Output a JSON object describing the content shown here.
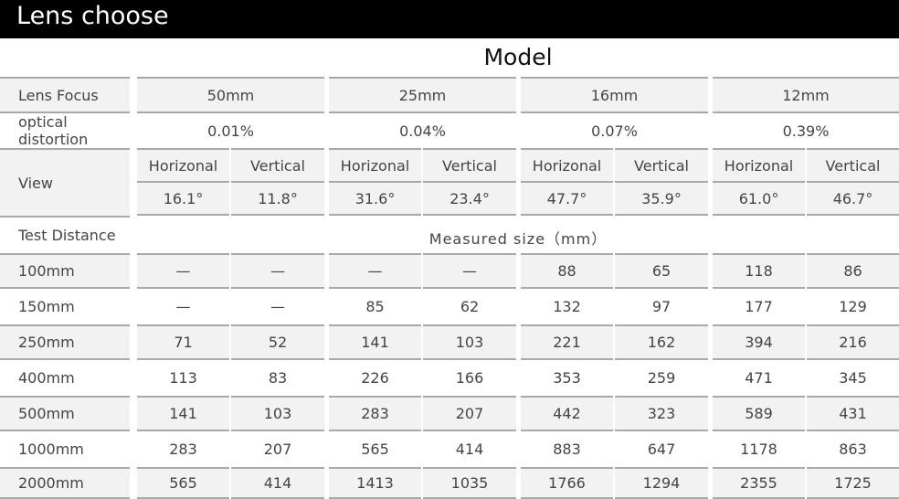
{
  "title": "Lens choose",
  "model_label": "Model",
  "row_labels": {
    "lens_focus": "Lens Focus",
    "optical_distortion": "optical distortion",
    "view": "View",
    "test_distance": "Test Distance"
  },
  "measured_size_label": "Measured size（mm）",
  "lenses": [
    {
      "focus": "50mm",
      "distortion": "0.01%",
      "horizontal_label": "Horizonal",
      "vertical_label": "Vertical",
      "horizontal_view": "16.1°",
      "vertical_view": "11.8°"
    },
    {
      "focus": "25mm",
      "distortion": "0.04%",
      "horizontal_label": "Horizonal",
      "vertical_label": "Vertical",
      "horizontal_view": "31.6°",
      "vertical_view": "23.4°"
    },
    {
      "focus": "16mm",
      "distortion": "0.07%",
      "horizontal_label": "Horizonal",
      "vertical_label": "Vertical",
      "horizontal_view": "47.7°",
      "vertical_view": "35.9°"
    },
    {
      "focus": "12mm",
      "distortion": "0.39%",
      "horizontal_label": "Horizonal",
      "vertical_label": "Vertical",
      "horizontal_view": "61.0°",
      "vertical_view": "46.7°"
    }
  ],
  "distances": [
    {
      "label": "100mm",
      "values": [
        "—",
        "—",
        "—",
        "—",
        "88",
        "65",
        "118",
        "86"
      ]
    },
    {
      "label": "150mm",
      "values": [
        "—",
        "—",
        "85",
        "62",
        "132",
        "97",
        "177",
        "129"
      ]
    },
    {
      "label": "250mm",
      "values": [
        "71",
        "52",
        "141",
        "103",
        "221",
        "162",
        "394",
        "216"
      ]
    },
    {
      "label": "400mm",
      "values": [
        "113",
        "83",
        "226",
        "166",
        "353",
        "259",
        "471",
        "345"
      ]
    },
    {
      "label": "500mm",
      "values": [
        "141",
        "103",
        "283",
        "207",
        "442",
        "323",
        "589",
        "431"
      ]
    },
    {
      "label": "1000mm",
      "values": [
        "283",
        "207",
        "565",
        "414",
        "883",
        "647",
        "1178",
        "863"
      ]
    },
    {
      "label": "2000mm",
      "values": [
        "565",
        "414",
        "1413",
        "1035",
        "1766",
        "1294",
        "2355",
        "1725"
      ]
    }
  ]
}
